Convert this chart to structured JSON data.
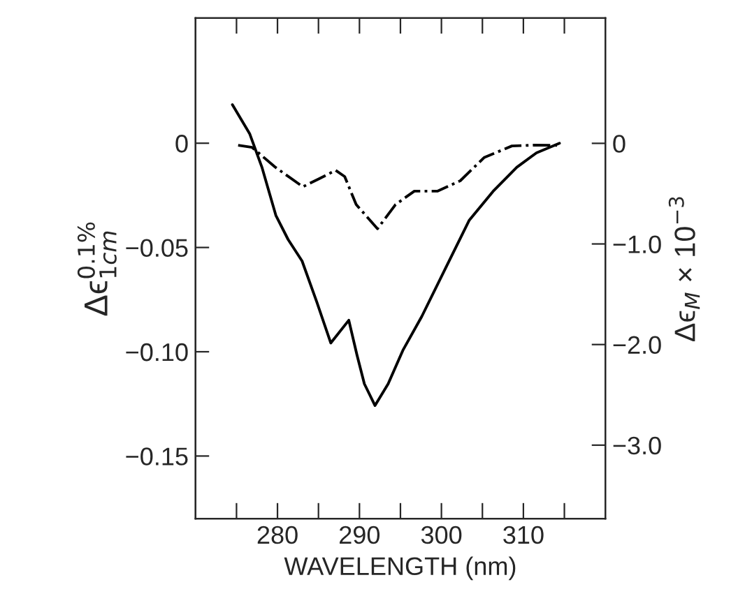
{
  "chart_data": {
    "type": "line",
    "xlabel": "WAVELENGTH (nm)",
    "ylabel": "Δϵ$^{0.1%}$$_{1cm}$",
    "y2label": "Δϵ$_{M}$ × 10$^{−3}$",
    "xlim": [
      270,
      320
    ],
    "xticks": [
      {
        "value": 275,
        "label": null
      },
      280,
      {
        "value": 285,
        "label": null
      },
      290,
      {
        "value": 295,
        "label": null
      },
      300,
      {
        "value": 305,
        "label": null
      },
      310,
      {
        "value": 315,
        "label": null
      }
    ],
    "ylim": [
      -0.18,
      0.06
    ],
    "yticks": [
      {
        "value": 0,
        "label": "0"
      },
      {
        "value": -0.05,
        "label": "−0.05"
      },
      {
        "value": -0.1,
        "label": "−0.10"
      },
      {
        "value": -0.15,
        "label": "−0.15"
      }
    ],
    "y2lim": [
      -3.73,
      1.245
    ],
    "y2ticks": [
      {
        "value": 0,
        "label": "0"
      },
      {
        "value": -1.0,
        "label": "−1.0"
      },
      {
        "value": -2.0,
        "label": "−2.0"
      },
      {
        "value": -3.0,
        "label": "−3.0"
      }
    ],
    "grid": false,
    "legend": false,
    "marker": "none",
    "series": [
      {
        "color": "#000000",
        "line_style": "solid",
        "x": [
          274.5,
          276.6,
          278.1,
          279.8,
          281.3,
          283.0,
          284.8,
          286.5,
          288.7,
          289.7,
          290.6,
          291.9,
          293.5,
          295.3,
          297.6,
          300.5,
          303.4,
          306.3,
          309.2,
          311.6,
          314.4
        ],
        "values": [
          0.0185,
          0.0046,
          -0.0115,
          -0.0346,
          -0.0462,
          -0.0565,
          -0.0762,
          -0.0958,
          -0.0849,
          -0.1016,
          -0.1154,
          -0.1258,
          -0.1154,
          -0.0993,
          -0.0831,
          -0.06,
          -0.0369,
          -0.0231,
          -0.0115,
          -0.0046,
          0.0
        ]
      },
      {
        "color": "#000000",
        "line_style": "dashdot",
        "x": [
          275.2,
          276.9,
          279.7,
          283.1,
          285.1,
          287.1,
          288.2,
          289.6,
          292.2,
          294.4,
          296.7,
          299.5,
          302.3,
          305.2,
          308.6,
          311.4,
          314.1
        ],
        "values": [
          -0.001,
          -0.002,
          -0.0114,
          -0.0209,
          -0.017,
          -0.013,
          -0.016,
          -0.0294,
          -0.041,
          -0.0294,
          -0.023,
          -0.023,
          -0.018,
          -0.0069,
          -0.0013,
          -0.0009,
          -0.001
        ]
      }
    ]
  }
}
